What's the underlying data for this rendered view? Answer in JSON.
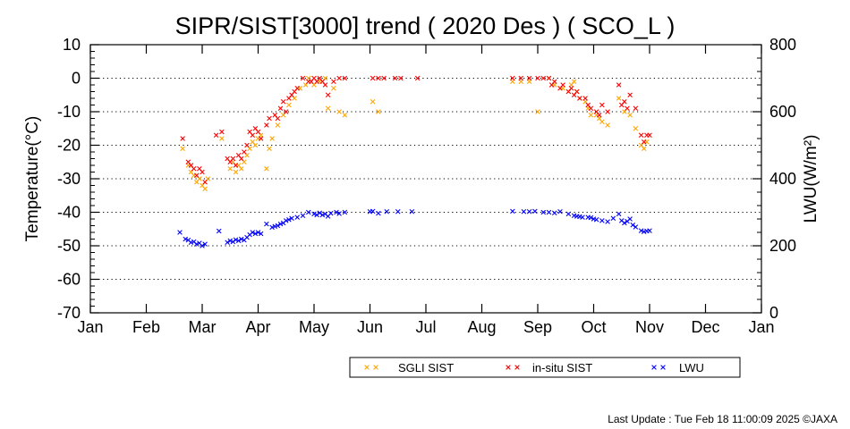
{
  "chart_data": {
    "type": "scatter",
    "title": "SIPR/SIST[3000] trend ( 2020 Des ) ( SCO_L )",
    "ylabel": "Temperature(°C)",
    "y2label": "LWU(W/m²)",
    "xlim": [
      0,
      12
    ],
    "ylim": [
      -70,
      10
    ],
    "y2lim": [
      0,
      800
    ],
    "x_ticks": [
      "Jan",
      "Feb",
      "Mar",
      "Apr",
      "May",
      "Jun",
      "Jul",
      "Aug",
      "Sep",
      "Oct",
      "Nov",
      "Dec",
      "Jan"
    ],
    "y_ticks": [
      "10",
      "0",
      "-10",
      "-20",
      "-30",
      "-40",
      "-50",
      "-60",
      "-70"
    ],
    "y2_ticks": [
      "800",
      "600",
      "400",
      "200",
      "0"
    ],
    "grid": "horizontal dotted",
    "legend_position": "bottom",
    "series": [
      {
        "name": "SGLI SIST",
        "color": "#ffa500",
        "axis": "left",
        "points": [
          [
            1.65,
            -21
          ],
          [
            1.75,
            -26
          ],
          [
            1.8,
            -28
          ],
          [
            1.85,
            -29
          ],
          [
            1.9,
            -31
          ],
          [
            1.95,
            -30
          ],
          [
            2.0,
            -32
          ],
          [
            2.05,
            -33
          ],
          [
            2.1,
            -30
          ],
          [
            2.35,
            -18
          ],
          [
            2.5,
            -27
          ],
          [
            2.55,
            -25
          ],
          [
            2.6,
            -28
          ],
          [
            2.65,
            -26
          ],
          [
            2.7,
            -27
          ],
          [
            2.75,
            -25
          ],
          [
            2.8,
            -23
          ],
          [
            2.85,
            -21
          ],
          [
            2.9,
            -19
          ],
          [
            2.95,
            -20
          ],
          [
            3.0,
            -18
          ],
          [
            3.05,
            -17
          ],
          [
            3.15,
            -27
          ],
          [
            3.2,
            -21
          ],
          [
            3.25,
            -18
          ],
          [
            3.35,
            -14
          ],
          [
            3.45,
            -11
          ],
          [
            3.55,
            -8
          ],
          [
            3.65,
            -6
          ],
          [
            3.75,
            -3
          ],
          [
            3.85,
            -2
          ],
          [
            3.9,
            0
          ],
          [
            4.0,
            -2
          ],
          [
            4.1,
            -1
          ],
          [
            4.2,
            0
          ],
          [
            4.25,
            -9
          ],
          [
            4.35,
            -3
          ],
          [
            4.45,
            -10
          ],
          [
            4.55,
            -11
          ],
          [
            5.05,
            -7
          ],
          [
            5.15,
            -10
          ],
          [
            7.55,
            -1
          ],
          [
            7.7,
            -1
          ],
          [
            7.85,
            -1
          ],
          [
            8.0,
            -10
          ],
          [
            8.2,
            0
          ],
          [
            8.3,
            -2
          ],
          [
            8.45,
            -3
          ],
          [
            8.55,
            -4
          ],
          [
            8.6,
            -2
          ],
          [
            8.65,
            -1
          ],
          [
            8.7,
            -4
          ],
          [
            8.75,
            -6
          ],
          [
            8.85,
            -7
          ],
          [
            8.9,
            -9
          ],
          [
            8.95,
            -11
          ],
          [
            9.05,
            -11
          ],
          [
            9.1,
            -12
          ],
          [
            9.15,
            -13
          ],
          [
            9.25,
            -14
          ],
          [
            9.45,
            -6
          ],
          [
            9.55,
            -10
          ],
          [
            9.65,
            -11
          ],
          [
            9.75,
            -15
          ],
          [
            9.85,
            -20
          ],
          [
            9.9,
            -21
          ],
          [
            9.95,
            -19
          ]
        ]
      },
      {
        "name": "in-situ SIST",
        "color": "#ff0000",
        "axis": "left",
        "points": [
          [
            1.65,
            -18
          ],
          [
            1.75,
            -25
          ],
          [
            1.8,
            -26
          ],
          [
            1.85,
            -27
          ],
          [
            1.9,
            -29
          ],
          [
            1.95,
            -27
          ],
          [
            2.0,
            -28
          ],
          [
            2.05,
            -31
          ],
          [
            2.25,
            -17
          ],
          [
            2.35,
            -16
          ],
          [
            2.45,
            -24
          ],
          [
            2.5,
            -25
          ],
          [
            2.55,
            -24
          ],
          [
            2.6,
            -26
          ],
          [
            2.65,
            -23
          ],
          [
            2.7,
            -24
          ],
          [
            2.75,
            -22
          ],
          [
            2.8,
            -20
          ],
          [
            2.85,
            -16
          ],
          [
            2.9,
            -17
          ],
          [
            2.95,
            -15
          ],
          [
            3.0,
            -16
          ],
          [
            3.05,
            -18
          ],
          [
            3.15,
            -14
          ],
          [
            3.2,
            -12
          ],
          [
            3.3,
            -11
          ],
          [
            3.35,
            -12
          ],
          [
            3.4,
            -9
          ],
          [
            3.45,
            -7
          ],
          [
            3.5,
            -10
          ],
          [
            3.55,
            -6
          ],
          [
            3.6,
            -5
          ],
          [
            3.65,
            -4
          ],
          [
            3.7,
            -3
          ],
          [
            3.8,
            0
          ],
          [
            3.9,
            -1
          ],
          [
            3.95,
            -1
          ],
          [
            4.0,
            0
          ],
          [
            4.05,
            -1
          ],
          [
            4.1,
            0
          ],
          [
            4.15,
            -1
          ],
          [
            4.2,
            -2
          ],
          [
            4.25,
            -5
          ],
          [
            4.35,
            -1
          ],
          [
            4.45,
            0
          ],
          [
            4.55,
            0
          ],
          [
            5.05,
            0
          ],
          [
            5.15,
            0
          ],
          [
            5.25,
            0
          ],
          [
            5.45,
            0
          ],
          [
            5.55,
            0
          ],
          [
            5.85,
            0
          ],
          [
            7.55,
            0
          ],
          [
            7.7,
            0
          ],
          [
            7.85,
            0
          ],
          [
            8.0,
            0
          ],
          [
            8.1,
            0
          ],
          [
            8.2,
            0
          ],
          [
            8.25,
            -2
          ],
          [
            8.3,
            -1
          ],
          [
            8.4,
            -3
          ],
          [
            8.45,
            -2
          ],
          [
            8.55,
            -4
          ],
          [
            8.6,
            -3
          ],
          [
            8.65,
            -5
          ],
          [
            8.7,
            -4
          ],
          [
            8.75,
            -6
          ],
          [
            8.85,
            -6
          ],
          [
            8.9,
            -8
          ],
          [
            8.95,
            -9
          ],
          [
            9.05,
            -10
          ],
          [
            9.1,
            -11
          ],
          [
            9.15,
            -8
          ],
          [
            9.25,
            -10
          ],
          [
            9.45,
            -2
          ],
          [
            9.5,
            -8
          ],
          [
            9.55,
            -7
          ],
          [
            9.6,
            -9
          ],
          [
            9.65,
            -5
          ],
          [
            9.75,
            -9
          ],
          [
            9.85,
            -17
          ],
          [
            9.9,
            -19
          ],
          [
            9.95,
            -17
          ],
          [
            10.0,
            -17
          ]
        ]
      },
      {
        "name": "LWU",
        "color": "#0000ff",
        "axis": "right",
        "points": [
          [
            1.6,
            240
          ],
          [
            1.7,
            220
          ],
          [
            1.75,
            217
          ],
          [
            1.8,
            210
          ],
          [
            1.85,
            212
          ],
          [
            1.9,
            205
          ],
          [
            1.95,
            208
          ],
          [
            2.0,
            200
          ],
          [
            2.05,
            205
          ],
          [
            2.3,
            244
          ],
          [
            2.45,
            210
          ],
          [
            2.5,
            215
          ],
          [
            2.55,
            212
          ],
          [
            2.6,
            218
          ],
          [
            2.65,
            215
          ],
          [
            2.7,
            220
          ],
          [
            2.75,
            217
          ],
          [
            2.8,
            225
          ],
          [
            2.85,
            233
          ],
          [
            2.9,
            240
          ],
          [
            2.95,
            236
          ],
          [
            3.0,
            240
          ],
          [
            3.05,
            236
          ],
          [
            3.15,
            265
          ],
          [
            3.25,
            255
          ],
          [
            3.3,
            258
          ],
          [
            3.35,
            260
          ],
          [
            3.4,
            265
          ],
          [
            3.45,
            268
          ],
          [
            3.5,
            275
          ],
          [
            3.55,
            278
          ],
          [
            3.6,
            282
          ],
          [
            3.7,
            285
          ],
          [
            3.8,
            290
          ],
          [
            3.9,
            300
          ],
          [
            4.0,
            295
          ],
          [
            4.05,
            292
          ],
          [
            4.1,
            298
          ],
          [
            4.15,
            292
          ],
          [
            4.2,
            295
          ],
          [
            4.25,
            288
          ],
          [
            4.3,
            297
          ],
          [
            4.4,
            300
          ],
          [
            4.45,
            296
          ],
          [
            4.55,
            300
          ],
          [
            5.0,
            302
          ],
          [
            5.05,
            303
          ],
          [
            5.15,
            297
          ],
          [
            5.3,
            302
          ],
          [
            5.5,
            302
          ],
          [
            5.75,
            302
          ],
          [
            7.55,
            303
          ],
          [
            7.75,
            302
          ],
          [
            7.85,
            302
          ],
          [
            7.95,
            303
          ],
          [
            8.1,
            300
          ],
          [
            8.2,
            300
          ],
          [
            8.3,
            298
          ],
          [
            8.4,
            302
          ],
          [
            8.55,
            295
          ],
          [
            8.65,
            290
          ],
          [
            8.7,
            288
          ],
          [
            8.75,
            287
          ],
          [
            8.8,
            285
          ],
          [
            8.9,
            285
          ],
          [
            8.95,
            284
          ],
          [
            9.0,
            280
          ],
          [
            9.05,
            278
          ],
          [
            9.15,
            275
          ],
          [
            9.25,
            272
          ],
          [
            9.35,
            282
          ],
          [
            9.45,
            295
          ],
          [
            9.5,
            275
          ],
          [
            9.55,
            268
          ],
          [
            9.6,
            273
          ],
          [
            9.65,
            280
          ],
          [
            9.7,
            262
          ],
          [
            9.75,
            256
          ],
          [
            9.85,
            245
          ],
          [
            9.9,
            242
          ],
          [
            9.95,
            244
          ],
          [
            10.0,
            245
          ]
        ]
      }
    ]
  },
  "footer": {
    "last_update": "Last Update : Tue Feb 18 11:00:09 2025",
    "copyright": "©JAXA"
  }
}
